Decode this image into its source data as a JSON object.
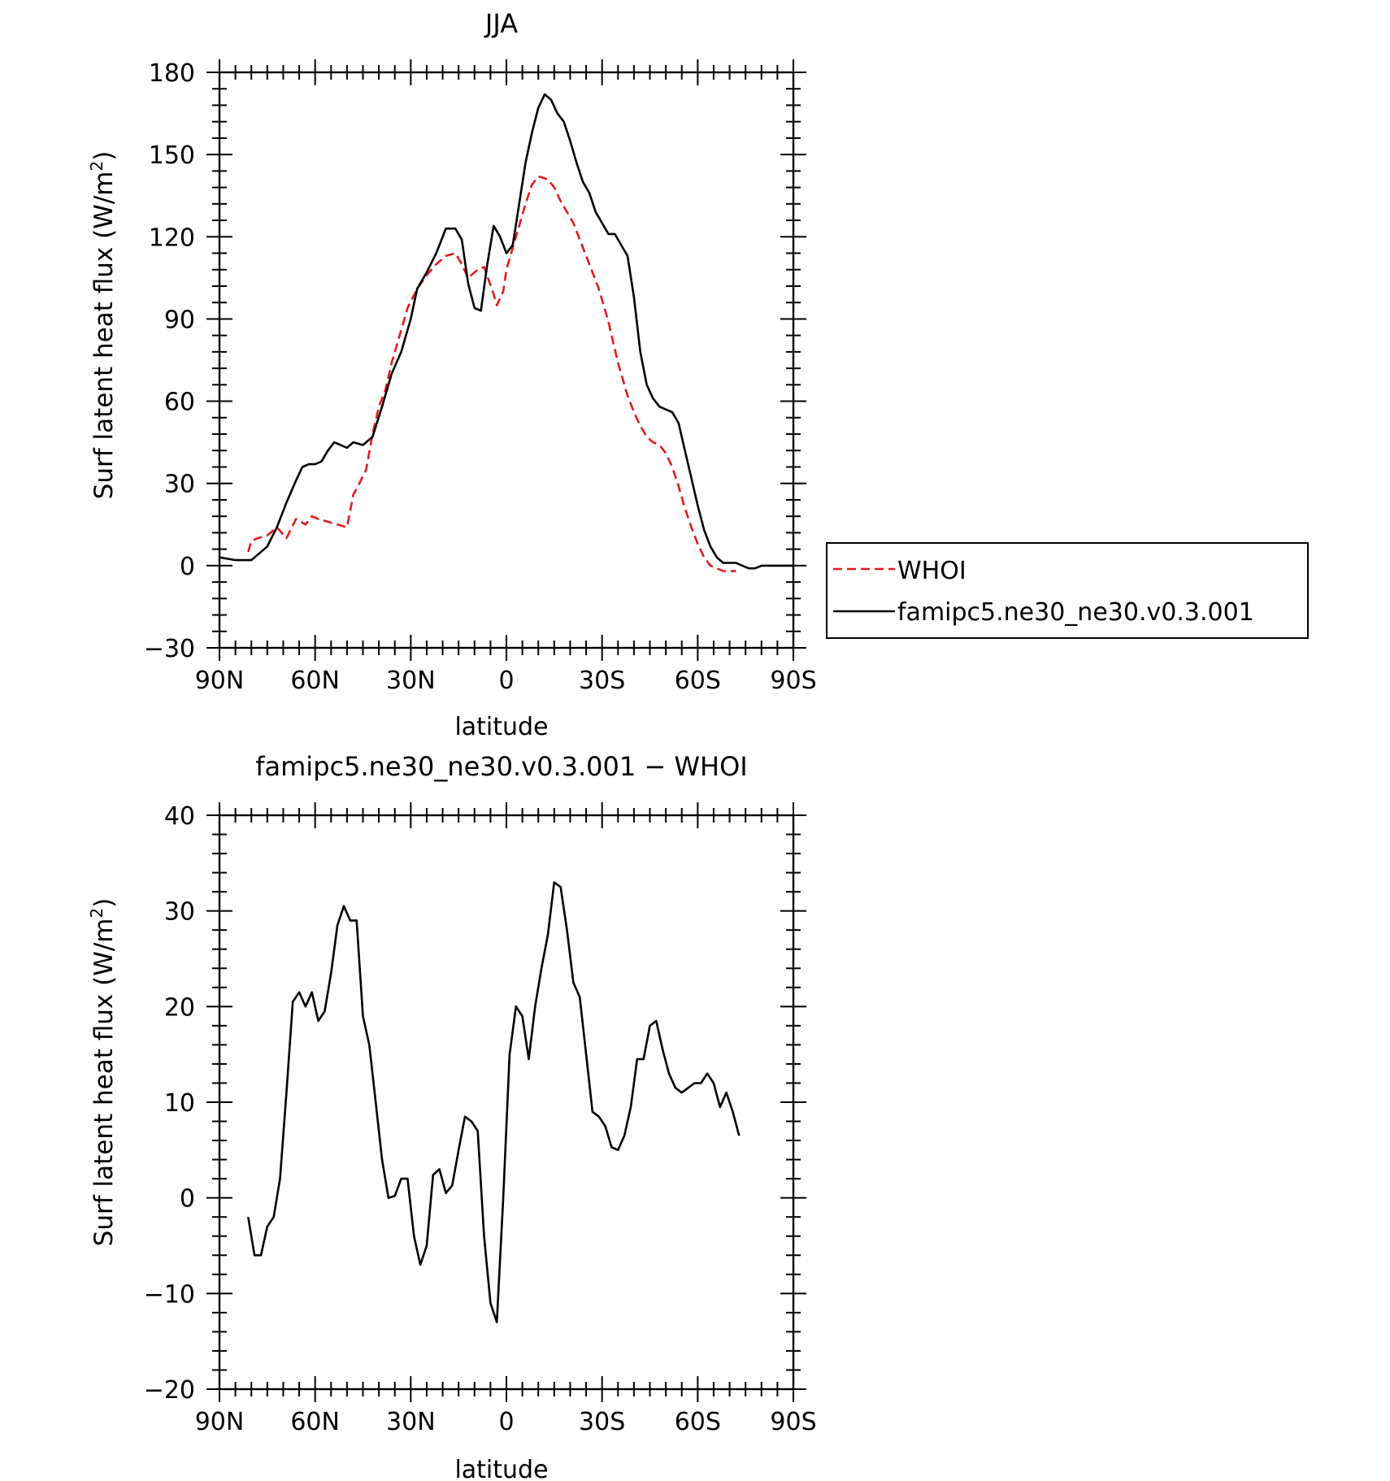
{
  "chart_data": [
    {
      "type": "line",
      "title": "JJA",
      "xlabel": "latitude",
      "ylabel": "Surf latent heat flux (W/m²)",
      "ylabel_main": "Surf latent heat flux (W/m",
      "ylabel_sup": "2",
      "ylabel_close": ")",
      "xlim": [
        90,
        -90
      ],
      "ylim": [
        -30,
        180
      ],
      "xticks": [
        90,
        60,
        30,
        0,
        -30,
        -60,
        -90
      ],
      "xtick_labels": [
        "90N",
        "60N",
        "30N",
        "0",
        "30S",
        "60S",
        "90S"
      ],
      "yticks": [
        -30,
        0,
        30,
        60,
        90,
        120,
        150,
        180
      ],
      "ytick_labels": [
        "−30",
        "0",
        "30",
        "60",
        "90",
        "120",
        "150",
        "180"
      ],
      "grid": false,
      "legend": "right",
      "series": [
        {
          "name": "WHOI",
          "color": "#e41a1c",
          "dash": "dashed",
          "x": [
            81,
            80,
            78,
            75,
            72,
            69,
            66,
            63,
            61,
            59,
            56,
            53,
            50,
            48,
            47,
            44,
            42,
            40,
            38,
            36,
            33,
            31,
            28,
            25,
            22,
            19,
            16,
            14,
            12,
            9,
            7,
            4,
            3,
            1,
            0,
            -2,
            -4,
            -6,
            -8,
            -10,
            -13,
            -15,
            -17,
            -19,
            -21,
            -23,
            -26,
            -29,
            -32,
            -35,
            -38,
            -40,
            -42,
            -44,
            -46,
            -48,
            -50,
            -52,
            -54,
            -56,
            -58,
            -60,
            -62,
            -64,
            -66,
            -68,
            -70,
            -72
          ],
          "y": [
            5,
            9,
            10,
            11,
            14,
            10,
            17,
            15,
            18,
            17,
            16,
            15,
            14,
            26,
            28,
            35,
            48,
            58,
            64,
            74,
            86,
            94,
            101,
            106,
            110,
            113,
            114,
            110,
            105,
            108,
            109,
            99,
            95,
            100,
            108,
            116,
            124,
            132,
            139,
            142,
            141,
            138,
            133,
            129,
            125,
            119,
            110,
            101,
            89,
            74,
            62,
            56,
            51,
            47,
            45,
            44,
            41,
            36,
            29,
            21,
            14,
            8,
            3,
            0,
            -1,
            -2,
            -2,
            -2
          ]
        },
        {
          "name": "famipc5.ne30_ne30.v0.3.001",
          "color": "#000000",
          "dash": "solid",
          "x": [
            90,
            85,
            80,
            75,
            72,
            69,
            66,
            64,
            62,
            60,
            58,
            56,
            54,
            52,
            50,
            48,
            45,
            42,
            39,
            36,
            33,
            30,
            28,
            25,
            22,
            19,
            16,
            14,
            12,
            10,
            8,
            6,
            4,
            2,
            0,
            -2,
            -4,
            -6,
            -8,
            -10,
            -12,
            -14,
            -16,
            -18,
            -20,
            -22,
            -24,
            -26,
            -28,
            -30,
            -32,
            -34,
            -36,
            -38,
            -40,
            -42,
            -44,
            -46,
            -48,
            -50,
            -52,
            -54,
            -56,
            -58,
            -60,
            -62,
            -64,
            -66,
            -68,
            -70,
            -72,
            -74,
            -76,
            -78,
            -80,
            -82,
            -84,
            -86,
            -88,
            -90
          ],
          "y": [
            3,
            2,
            2,
            7,
            14,
            23,
            31,
            36,
            37,
            37,
            38,
            42,
            45,
            44,
            43,
            45,
            44,
            47,
            58,
            70,
            78,
            90,
            101,
            107,
            114,
            123,
            123,
            119,
            103,
            94,
            93,
            110,
            124,
            120,
            114,
            117,
            132,
            147,
            158,
            167,
            172,
            170,
            165,
            162,
            155,
            147,
            140,
            136,
            129,
            125,
            121,
            121,
            117,
            113,
            98,
            78,
            66,
            61,
            58,
            57,
            56,
            52,
            42,
            32,
            22,
            13,
            7,
            3,
            1,
            1,
            1,
            0,
            -1,
            -1,
            0,
            0,
            0,
            0,
            0,
            0
          ]
        }
      ]
    },
    {
      "type": "line",
      "title": "famipc5.ne30_ne30.v0.3.001 − WHOI",
      "xlabel": "latitude",
      "ylabel": "Surf latent heat flux (W/m²)",
      "ylabel_main": "Surf latent heat flux (W/m",
      "ylabel_sup": "2",
      "ylabel_close": ")",
      "xlim": [
        90,
        -90
      ],
      "ylim": [
        -20,
        40
      ],
      "xticks": [
        90,
        60,
        30,
        0,
        -30,
        -60,
        -90
      ],
      "xtick_labels": [
        "90N",
        "60N",
        "30N",
        "0",
        "30S",
        "60S",
        "90S"
      ],
      "yticks": [
        -20,
        -10,
        0,
        10,
        20,
        30,
        40
      ],
      "ytick_labels": [
        "−20",
        "−10",
        "0",
        "10",
        "20",
        "30",
        "40"
      ],
      "grid": false,
      "series": [
        {
          "color": "#000000",
          "dash": "solid",
          "x": [
            81,
            79,
            77,
            75,
            73,
            71,
            69,
            67,
            65,
            63,
            61,
            59,
            57,
            55,
            53,
            51,
            49,
            47,
            45,
            43,
            41,
            39,
            37,
            35,
            33,
            31,
            29,
            27,
            25,
            23,
            21,
            19,
            17,
            15,
            13,
            11,
            9,
            7,
            5,
            3,
            1,
            -1,
            -3,
            -5,
            -7,
            -9,
            -11,
            -13,
            -15,
            -17,
            -19,
            -21,
            -23,
            -25,
            -27,
            -29,
            -31,
            -33,
            -35,
            -37,
            -39,
            -41,
            -43,
            -45,
            -47,
            -49,
            -51,
            -53,
            -55,
            -57,
            -59,
            -61,
            -63,
            -65,
            -67,
            -69,
            -71,
            -73
          ],
          "y": [
            -2,
            -6,
            -6,
            -3,
            -2,
            2,
            11,
            20.5,
            21.5,
            20,
            21.5,
            18.5,
            19.5,
            23.5,
            28.5,
            30.5,
            29,
            29,
            19,
            16,
            10,
            4,
            0,
            0.2,
            2,
            2,
            -4,
            -7,
            -5,
            2.4,
            3,
            0.5,
            1.3,
            5,
            8.5,
            8,
            7,
            -4,
            -11,
            -13,
            0,
            15,
            20,
            19,
            14.5,
            20,
            24,
            27.5,
            33,
            32.5,
            28,
            22.5,
            21,
            15,
            9,
            8.5,
            7.5,
            5.3,
            5,
            6.5,
            9.5,
            14.5,
            14.5,
            18,
            18.5,
            15.5,
            13,
            11.5,
            11,
            11.5,
            12,
            12,
            13,
            12,
            9.5,
            11,
            9,
            6.5
          ]
        }
      ]
    }
  ]
}
